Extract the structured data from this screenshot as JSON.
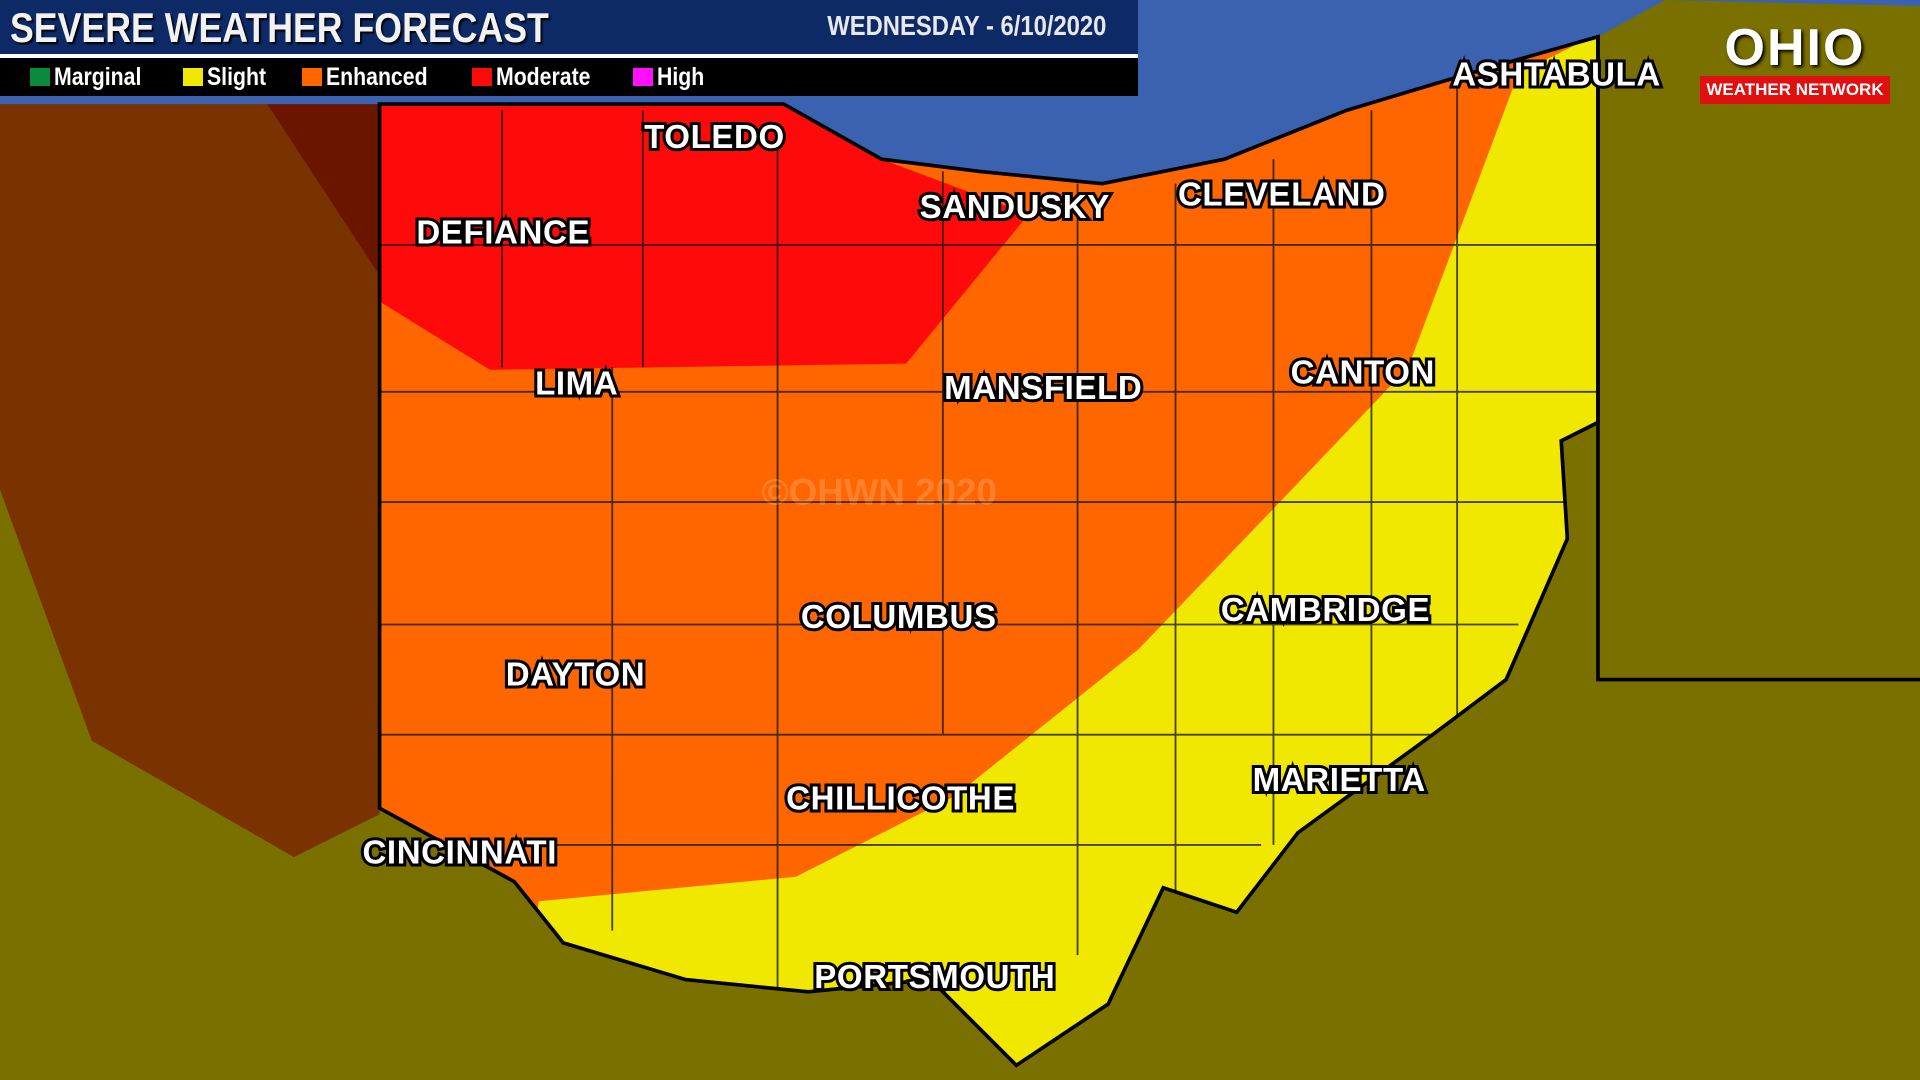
{
  "header": {
    "title": "SEVERE WEATHER FORECAST",
    "date": "WEDNESDAY - 6/10/2020"
  },
  "legend": [
    {
      "label": "Marginal",
      "color": "#0a8a3a"
    },
    {
      "label": "Slight",
      "color": "#f0e800"
    },
    {
      "label": "Enhanced",
      "color": "#ff6600"
    },
    {
      "label": "Moderate",
      "color": "#ff0a0a"
    },
    {
      "label": "High",
      "color": "#ff10ff"
    }
  ],
  "logo": {
    "name": "OHIO",
    "subtitle": "WEATHER NETWORK"
  },
  "watermark": "©OHWN 2020",
  "cities": [
    "TOLEDO",
    "DEFIANCE",
    "SANDUSKY",
    "CLEVELAND",
    "ASHTABULA",
    "LIMA",
    "MANSFIELD",
    "CANTON",
    "COLUMBUS",
    "CAMBRIDGE",
    "DAYTON",
    "CHILLICOTHE",
    "MARIETTA",
    "CINCINNATI",
    "PORTSMOUTH"
  ],
  "colors": {
    "lake": "#3a62b0",
    "outside": "#7a7000",
    "indiana": "#7a3300",
    "slight": "#f0e800",
    "enhanced": "#ff6600",
    "moderate": "#ff0a0a"
  }
}
